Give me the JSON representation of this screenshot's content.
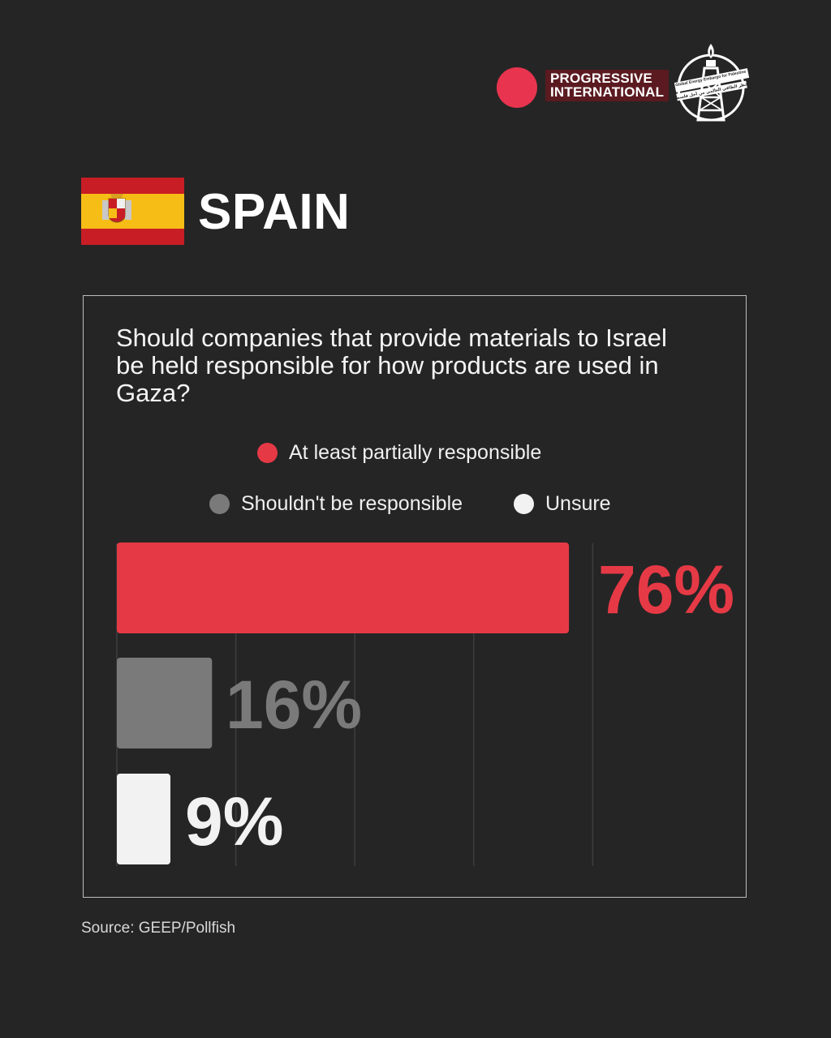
{
  "header": {
    "logo_text": "PROGRESSIVE\nINTERNATIONAL",
    "emblem_icon": "oil-rig-emblem-icon",
    "emblem_text": "Global Energy Embargo for Palestine",
    "emblem_arabic": "الحظر الطاقي العالمي من أجل فلسطين"
  },
  "country": {
    "name": "SPAIN",
    "flag_icon": "spain-flag-icon"
  },
  "chart_data": {
    "type": "bar",
    "orientation": "horizontal",
    "title": "Should companies that provide materials to Israel be held responsible for how products are used in Gaza?",
    "categories": [
      "At least partially responsible",
      "Shouldn't be responsible",
      "Unsure"
    ],
    "values": [
      76,
      16,
      9
    ],
    "labels": [
      "76%",
      "16%",
      "9%"
    ],
    "colors": [
      "#e63946",
      "#7a7a7a",
      "#f2f2f2"
    ],
    "xlim": [
      0,
      100
    ],
    "grid": true,
    "legend_position": "top"
  },
  "footer": {
    "source": "Source: GEEP/Pollfish"
  }
}
